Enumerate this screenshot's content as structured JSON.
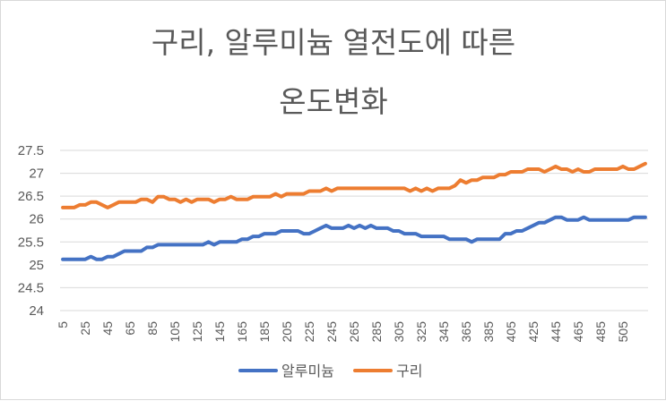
{
  "chart_data": {
    "type": "line",
    "title_lines": [
      "구리, 알루미늄 열전도에 따른",
      "온도변화"
    ],
    "xlabel": "",
    "ylabel": "",
    "ylim": [
      24,
      27.5
    ],
    "yticks": [
      "24",
      "24.5",
      "25",
      "25.5",
      "26",
      "26.5",
      "27",
      "27.5"
    ],
    "ytick_values": [
      24,
      24.5,
      25,
      25.5,
      26,
      26.5,
      27,
      27.5
    ],
    "x_start": 5,
    "x_step": 5,
    "xtick_labels": [
      "5",
      "25",
      "45",
      "65",
      "85",
      "105",
      "125",
      "145",
      "165",
      "185",
      "205",
      "225",
      "245",
      "265",
      "285",
      "305",
      "325",
      "345",
      "365",
      "385",
      "405",
      "425",
      "445",
      "465",
      "485",
      "505"
    ],
    "grid": true,
    "legend_position": "bottom",
    "series": [
      {
        "name": "알루미늄",
        "color": "#4472c4",
        "values": [
          25.12,
          25.12,
          25.12,
          25.12,
          25.12,
          25.18,
          25.12,
          25.12,
          25.18,
          25.18,
          25.24,
          25.3,
          25.3,
          25.3,
          25.3,
          25.38,
          25.38,
          25.44,
          25.44,
          25.44,
          25.44,
          25.44,
          25.44,
          25.44,
          25.44,
          25.44,
          25.5,
          25.44,
          25.5,
          25.5,
          25.5,
          25.5,
          25.56,
          25.56,
          25.62,
          25.62,
          25.68,
          25.68,
          25.68,
          25.74,
          25.74,
          25.74,
          25.74,
          25.68,
          25.68,
          25.74,
          25.8,
          25.86,
          25.8,
          25.8,
          25.8,
          25.86,
          25.8,
          25.86,
          25.8,
          25.86,
          25.8,
          25.8,
          25.8,
          25.74,
          25.74,
          25.68,
          25.68,
          25.68,
          25.62,
          25.62,
          25.62,
          25.62,
          25.62,
          25.56,
          25.56,
          25.56,
          25.56,
          25.5,
          25.56,
          25.56,
          25.56,
          25.56,
          25.56,
          25.68,
          25.68,
          25.74,
          25.74,
          25.8,
          25.86,
          25.92,
          25.92,
          25.98,
          26.04,
          26.04,
          25.98,
          25.98,
          25.98,
          26.04,
          25.98,
          25.98,
          25.98,
          25.98,
          25.98,
          25.98,
          25.98,
          25.98,
          26.04,
          26.04,
          26.04
        ]
      },
      {
        "name": "구리",
        "color": "#ed7d31",
        "values": [
          26.25,
          26.25,
          26.25,
          26.31,
          26.31,
          26.37,
          26.37,
          26.31,
          26.25,
          26.31,
          26.37,
          26.37,
          26.37,
          26.37,
          26.43,
          26.43,
          26.37,
          26.49,
          26.49,
          26.43,
          26.43,
          26.37,
          26.43,
          26.37,
          26.43,
          26.43,
          26.43,
          26.37,
          26.43,
          26.43,
          26.49,
          26.43,
          26.43,
          26.43,
          26.49,
          26.49,
          26.49,
          26.49,
          26.55,
          26.49,
          26.55,
          26.55,
          26.55,
          26.55,
          26.61,
          26.61,
          26.61,
          26.67,
          26.61,
          26.67,
          26.67,
          26.67,
          26.67,
          26.67,
          26.67,
          26.67,
          26.67,
          26.67,
          26.67,
          26.67,
          26.67,
          26.67,
          26.61,
          26.67,
          26.61,
          26.67,
          26.61,
          26.67,
          26.67,
          26.67,
          26.73,
          26.85,
          26.79,
          26.85,
          26.85,
          26.91,
          26.91,
          26.91,
          26.97,
          26.97,
          27.03,
          27.03,
          27.03,
          27.09,
          27.09,
          27.09,
          27.03,
          27.09,
          27.15,
          27.09,
          27.09,
          27.03,
          27.09,
          27.03,
          27.03,
          27.09,
          27.09,
          27.09,
          27.09,
          27.09,
          27.15,
          27.09,
          27.09,
          27.15,
          27.21
        ]
      }
    ]
  }
}
